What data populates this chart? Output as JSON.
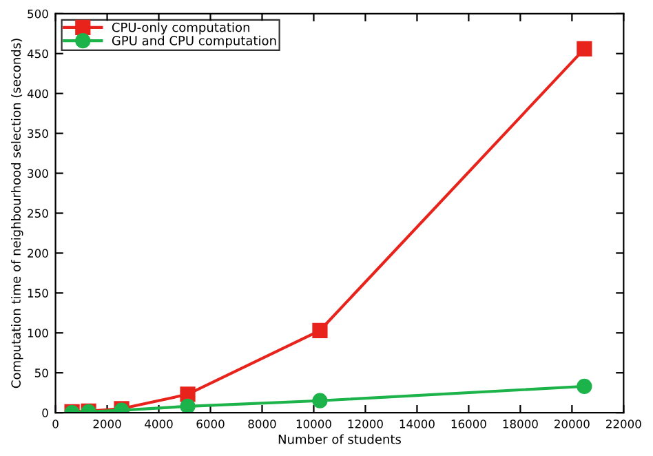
{
  "chart_data": {
    "type": "line",
    "xlabel": "Number of students",
    "ylabel": "Computation time of neighbourhood selection (seconds)",
    "x": [
      640,
      1280,
      2560,
      5120,
      10240,
      20480
    ],
    "series": [
      {
        "name": "CPU-only computation",
        "color": "#e8231c",
        "marker": "square",
        "values": [
          1,
          2,
          5,
          23,
          103,
          456
        ]
      },
      {
        "name": "GPU and CPU computation",
        "color": "#1cb34a",
        "marker": "circle",
        "values": [
          0,
          1,
          3,
          8,
          15,
          33
        ]
      }
    ],
    "xlim": [
      0,
      22000
    ],
    "xticks": [
      0,
      2000,
      4000,
      6000,
      8000,
      10000,
      12000,
      14000,
      16000,
      18000,
      20000,
      22000
    ],
    "ylim": [
      0,
      500
    ],
    "yticks": [
      0,
      50,
      100,
      150,
      200,
      250,
      300,
      350,
      400,
      450,
      500
    ],
    "legend": "top left",
    "grid": false,
    "line_style": "solid"
  }
}
